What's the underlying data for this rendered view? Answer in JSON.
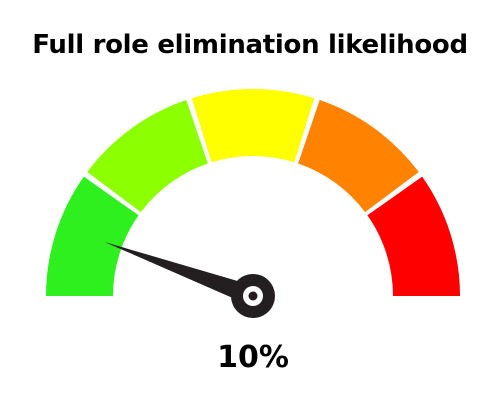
{
  "gauge": {
    "title": "Full role elimination likelihood",
    "value_label": "10%",
    "value": 0.1,
    "segments": [
      {
        "color": "#2ef01f"
      },
      {
        "color": "#8cff00"
      },
      {
        "color": "#ffff00"
      },
      {
        "color": "#ff8300"
      },
      {
        "color": "#ff0000"
      }
    ],
    "needle_color": "#231f20",
    "hub_center_color": "#ffffff"
  }
}
